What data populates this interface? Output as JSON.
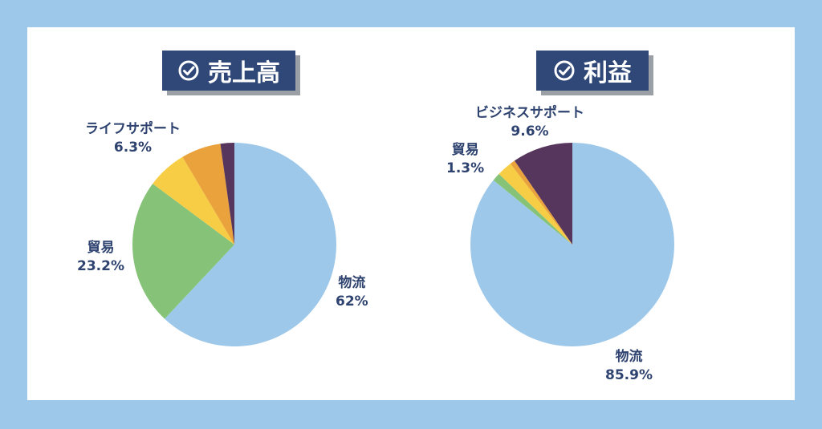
{
  "colors": {
    "background": "#9dc8ea",
    "card": "#ffffff",
    "badge": "#2f4878",
    "label_text": "#2f4370",
    "logistics": "#9dc8ea",
    "trade": "#86c378",
    "yellow": "#f7cd45",
    "orange": "#eaa23c",
    "purple": "#57365d"
  },
  "chart_data": [
    {
      "type": "pie",
      "title": "売上高",
      "title_icon": "check-circle-icon",
      "slices": [
        {
          "label": "物流",
          "value": 62,
          "value_text": "62%",
          "color": "#9dc8ea"
        },
        {
          "label": "貿易",
          "value": 23.2,
          "value_text": "23.2%",
          "color": "#86c378"
        },
        {
          "label": "",
          "value": 6.3,
          "value_text": "",
          "color": "#f7cd45"
        },
        {
          "label": "ライフサポート",
          "value": 6.3,
          "value_text": "6.3%",
          "color": "#eaa23c"
        },
        {
          "label": "",
          "value": 2.2,
          "value_text": "",
          "color": "#57365d"
        }
      ]
    },
    {
      "type": "pie",
      "title": "利益",
      "title_icon": "check-circle-icon",
      "slices": [
        {
          "label": "物流",
          "value": 85.9,
          "value_text": "85.9%",
          "color": "#9dc8ea"
        },
        {
          "label": "貿易",
          "value": 1.3,
          "value_text": "1.3%",
          "color": "#86c378"
        },
        {
          "label": "",
          "value": 2.4,
          "value_text": "",
          "color": "#f7cd45"
        },
        {
          "label": "",
          "value": 0.8,
          "value_text": "",
          "color": "#eaa23c"
        },
        {
          "label": "ビジネスサポート",
          "value": 9.6,
          "value_text": "9.6%",
          "color": "#57365d"
        }
      ]
    }
  ]
}
